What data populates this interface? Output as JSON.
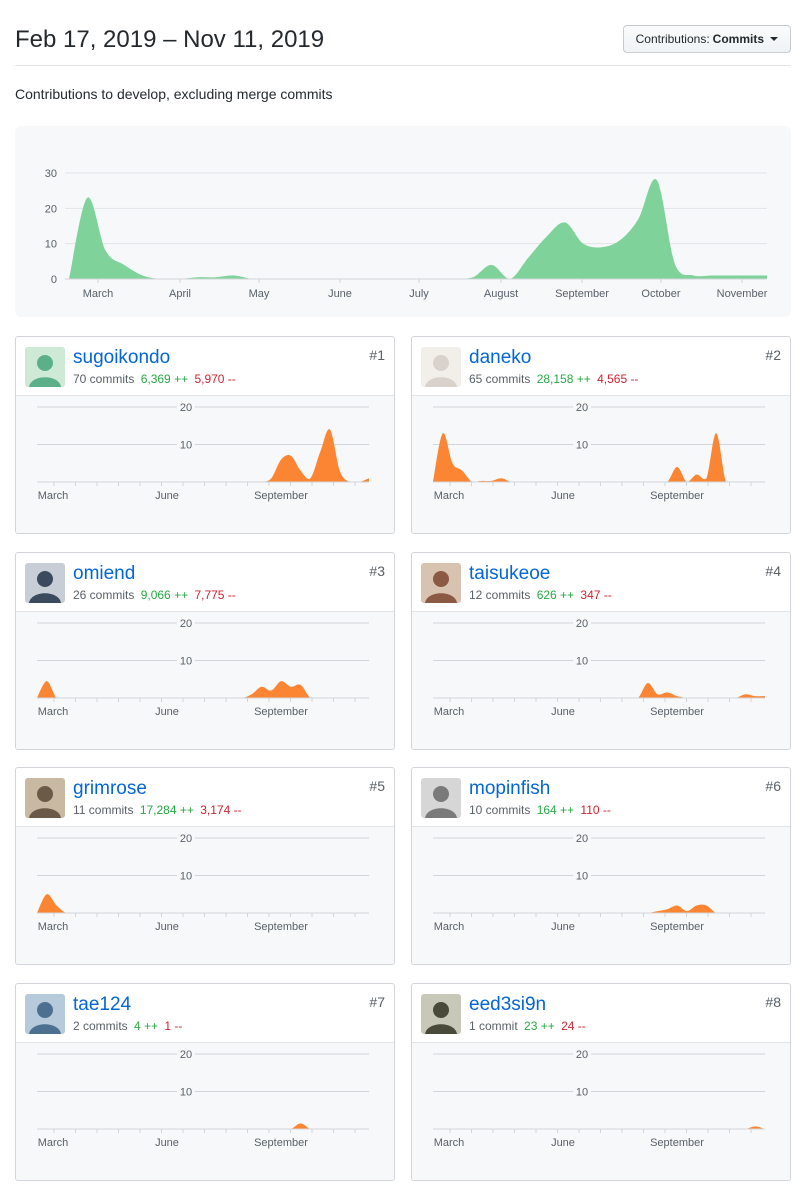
{
  "header": {
    "date_range": "Feb 17, 2019 – Nov 11, 2019",
    "contrib_button": {
      "prefix": "Contributions:",
      "value": "Commits"
    }
  },
  "subtitle": "Contributions to develop, excluding merge commits",
  "colors": {
    "main_area": "#7fd29a",
    "contributor_area": "#fb8532",
    "link": "#0366d6",
    "add": "#28a745",
    "del": "#cb2431"
  },
  "chart_data": [
    {
      "type": "area",
      "ylim": [
        0,
        30
      ],
      "y_ticks": [
        "0",
        "10",
        "20",
        "30"
      ],
      "x_labels": [
        "March",
        "April",
        "May",
        "June",
        "July",
        "August",
        "September",
        "October",
        "November"
      ],
      "x": [
        "Feb 17",
        "Feb 24",
        "Mar 3",
        "Mar 10",
        "Mar 17",
        "Mar 24",
        "Mar 31",
        "Apr 7",
        "Apr 14",
        "Apr 21",
        "Apr 28",
        "May 5",
        "May 12",
        "May 19",
        "May 26",
        "Jun 2",
        "Jun 9",
        "Jun 16",
        "Jun 23",
        "Jun 30",
        "Jul 7",
        "Jul 14",
        "Jul 21",
        "Jul 28",
        "Aug 4",
        "Aug 11",
        "Aug 18",
        "Aug 25",
        "Sep 1",
        "Sep 8",
        "Sep 15",
        "Sep 22",
        "Sep 29",
        "Oct 6",
        "Oct 13",
        "Oct 20",
        "Oct 27",
        "Nov 3",
        "Nov 10"
      ],
      "values": [
        0,
        23,
        8,
        4,
        1,
        0,
        0,
        0.5,
        0.5,
        1,
        0,
        0,
        0,
        0,
        0,
        0,
        0,
        0,
        0,
        0,
        0,
        0,
        0.5,
        4,
        0,
        6,
        12,
        16,
        10,
        9,
        11,
        17,
        28,
        4,
        1,
        1,
        1,
        1,
        1
      ]
    }
  ],
  "contributors": [
    {
      "rank": "#1",
      "name": "sugoikondo",
      "commits": "70 commits",
      "additions": "6,369 ++",
      "deletions": "5,970 --",
      "avatar": "avatar-image",
      "chart_data": {
        "type": "area",
        "ylim": [
          0,
          20
        ],
        "y_ticks": [
          "10",
          "20"
        ],
        "x_labels": [
          "March",
          "June",
          "September"
        ],
        "values": [
          0,
          0,
          0,
          0,
          0,
          0,
          0,
          0,
          0,
          0,
          0,
          0,
          0,
          0,
          0,
          0,
          0,
          0,
          0,
          0,
          0,
          0,
          0,
          0,
          1,
          6,
          7,
          3,
          1,
          8,
          14,
          3,
          0,
          0,
          1
        ]
      }
    },
    {
      "rank": "#2",
      "name": "daneko",
      "commits": "65 commits",
      "additions": "28,158 ++",
      "deletions": "4,565 --",
      "avatar": "avatar-image",
      "chart_data": {
        "type": "area",
        "ylim": [
          0,
          20
        ],
        "y_ticks": [
          "10",
          "20"
        ],
        "x_labels": [
          "March",
          "June",
          "September"
        ],
        "values": [
          0,
          13,
          5,
          3,
          0,
          0.3,
          0.3,
          1,
          0,
          0,
          0,
          0,
          0,
          0,
          0,
          0,
          0,
          0,
          0,
          0,
          0,
          0,
          0,
          0,
          0,
          4,
          0,
          2,
          1,
          13,
          0,
          0,
          0,
          0,
          0
        ]
      }
    },
    {
      "rank": "#3",
      "name": "omiend",
      "commits": "26 commits",
      "additions": "9,066 ++",
      "deletions": "7,775 --",
      "avatar": "avatar-image",
      "chart_data": {
        "type": "area",
        "ylim": [
          0,
          20
        ],
        "y_ticks": [
          "10",
          "20"
        ],
        "x_labels": [
          "March",
          "June",
          "September"
        ],
        "values": [
          0,
          4.5,
          0,
          0,
          0,
          0,
          0,
          0,
          0,
          0,
          0,
          0,
          0,
          0,
          0,
          0,
          0,
          0,
          0,
          0,
          0,
          0,
          1,
          3,
          2,
          4.5,
          3,
          3.5,
          0,
          0,
          0,
          0,
          0,
          0,
          0
        ]
      }
    },
    {
      "rank": "#4",
      "name": "taisukeoe",
      "commits": "12 commits",
      "additions": "626 ++",
      "deletions": "347 --",
      "avatar": "avatar-image",
      "chart_data": {
        "type": "area",
        "ylim": [
          0,
          20
        ],
        "y_ticks": [
          "10",
          "20"
        ],
        "x_labels": [
          "March",
          "June",
          "September"
        ],
        "values": [
          0,
          0,
          0,
          0,
          0,
          0,
          0,
          0,
          0,
          0,
          0,
          0,
          0,
          0,
          0,
          0,
          0,
          0,
          0,
          0,
          0,
          0,
          4,
          1,
          1.5,
          0.5,
          0,
          0,
          0,
          0,
          0,
          0,
          1,
          0.5,
          0.5
        ]
      }
    },
    {
      "rank": "#5",
      "name": "grimrose",
      "commits": "11 commits",
      "additions": "17,284 ++",
      "deletions": "3,174 --",
      "avatar": "avatar-image",
      "chart_data": {
        "type": "area",
        "ylim": [
          0,
          20
        ],
        "y_ticks": [
          "10",
          "20"
        ],
        "x_labels": [
          "March",
          "June",
          "September"
        ],
        "values": [
          0,
          5,
          2,
          0,
          0,
          0,
          0,
          0,
          0,
          0,
          0,
          0,
          0,
          0,
          0,
          0,
          0,
          0,
          0,
          0,
          0,
          0,
          0,
          0,
          0,
          0,
          0,
          0,
          0,
          0,
          0,
          0,
          0,
          0,
          0
        ]
      }
    },
    {
      "rank": "#6",
      "name": "mopinfish",
      "commits": "10 commits",
      "additions": "164 ++",
      "deletions": "110 --",
      "avatar": "avatar-image",
      "chart_data": {
        "type": "area",
        "ylim": [
          0,
          20
        ],
        "y_ticks": [
          "10",
          "20"
        ],
        "x_labels": [
          "March",
          "June",
          "September"
        ],
        "values": [
          0,
          0,
          0,
          0,
          0,
          0,
          0,
          0,
          0,
          0,
          0,
          0,
          0,
          0,
          0,
          0,
          0,
          0,
          0,
          0,
          0,
          0,
          0,
          0.5,
          1,
          2,
          0.5,
          2,
          2,
          0,
          0,
          0,
          0,
          0,
          0
        ]
      }
    },
    {
      "rank": "#7",
      "name": "tae124",
      "commits": "2 commits",
      "additions": "4 ++",
      "deletions": "1 --",
      "avatar": "avatar-image",
      "chart_data": {
        "type": "area",
        "ylim": [
          0,
          20
        ],
        "y_ticks": [
          "10",
          "20"
        ],
        "x_labels": [
          "March",
          "June",
          "September"
        ],
        "values": [
          0,
          0,
          0,
          0,
          0,
          0,
          0,
          0,
          0,
          0,
          0,
          0,
          0,
          0,
          0,
          0,
          0,
          0,
          0,
          0,
          0,
          0,
          0,
          0,
          0,
          0,
          0,
          1.5,
          0,
          0,
          0,
          0,
          0,
          0,
          0
        ]
      }
    },
    {
      "rank": "#8",
      "name": "eed3si9n",
      "commits": "1 commit",
      "additions": "23 ++",
      "deletions": "24 --",
      "avatar": "avatar-image",
      "chart_data": {
        "type": "area",
        "ylim": [
          0,
          20
        ],
        "y_ticks": [
          "10",
          "20"
        ],
        "x_labels": [
          "March",
          "June",
          "September"
        ],
        "values": [
          0,
          0,
          0,
          0,
          0,
          0,
          0,
          0,
          0,
          0,
          0,
          0,
          0,
          0,
          0,
          0,
          0,
          0,
          0,
          0,
          0,
          0,
          0,
          0,
          0,
          0,
          0,
          0,
          0,
          0,
          0,
          0,
          0,
          0.7,
          0
        ]
      }
    }
  ]
}
